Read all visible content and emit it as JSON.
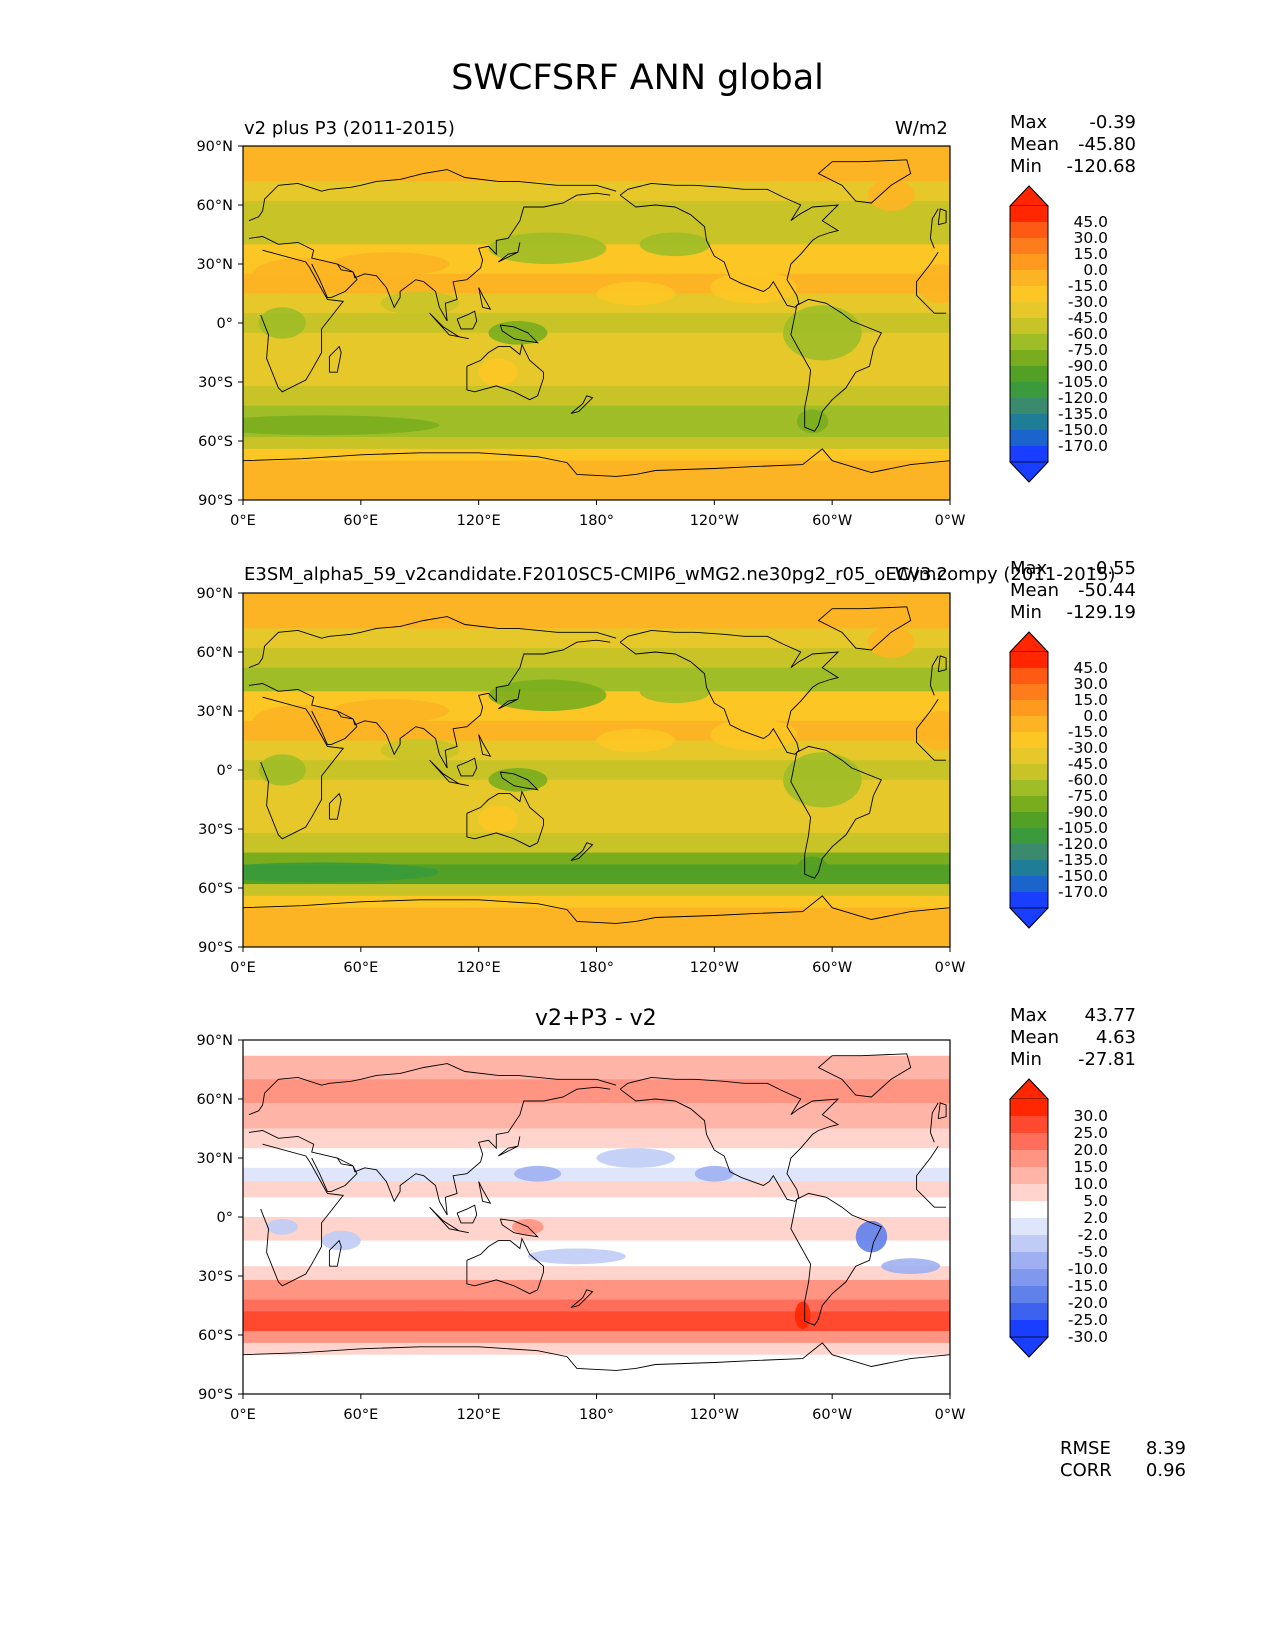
{
  "figure_title": "SWCFSRF ANN global",
  "axes": {
    "lat_labels": [
      "90°N",
      "60°N",
      "30°N",
      "0°",
      "30°S",
      "60°S",
      "90°S"
    ],
    "lon_labels": [
      "0°E",
      "60°E",
      "120°E",
      "180°",
      "120°W",
      "60°W",
      "0°W"
    ]
  },
  "colors": {
    "base_palette": [
      "#ff2600",
      "#ff5a14",
      "#ff7c1c",
      "#ff9a1e",
      "#fdb424",
      "#fcc624",
      "#e6c82a",
      "#c8c428",
      "#9fbd27",
      "#7aad1e",
      "#52a025",
      "#3a9a3c",
      "#3a8a6e",
      "#1f7d98",
      "#1a64cc",
      "#1a3eff"
    ],
    "diff_palette": [
      "#ff2600",
      "#ff4a30",
      "#ff6e5a",
      "#ff9482",
      "#ffb4a8",
      "#ffd4cc",
      "#ffffff",
      "#dfe6fb",
      "#c0ccf6",
      "#9fb0f2",
      "#8098ee",
      "#6080ea",
      "#3e62f0",
      "#1a3eff"
    ],
    "land_outline": "#000000"
  },
  "panels": [
    {
      "id": "test",
      "title_left": "v2 plus P3 (2011-2015)",
      "units": "W/m2",
      "stats": {
        "max_label": "Max",
        "max": "-0.39",
        "mean_label": "Mean",
        "mean": "-45.80",
        "min_label": "Min",
        "min": "-120.68"
      },
      "colorbar_levels": [
        "45.0",
        "30.0",
        "15.0",
        "0.0",
        "-15.0",
        "-30.0",
        "-45.0",
        "-60.0",
        "-75.0",
        "-90.0",
        "-105.0",
        "-120.0",
        "-135.0",
        "-150.0",
        "-170.0"
      ]
    },
    {
      "id": "ref",
      "title_left": "E3SM_alpha5_59_v2candidate.F2010SC5-CMIP6_wMG2.ne30pg2_r05_oECv3.compy (2011-2015)",
      "units": "W/m2",
      "stats": {
        "max_label": "Max",
        "max": "-0.55",
        "mean_label": "Mean",
        "mean": "-50.44",
        "min_label": "Min",
        "min": "-129.19"
      },
      "colorbar_levels": [
        "45.0",
        "30.0",
        "15.0",
        "0.0",
        "-15.0",
        "-30.0",
        "-45.0",
        "-60.0",
        "-75.0",
        "-90.0",
        "-105.0",
        "-120.0",
        "-135.0",
        "-150.0",
        "-170.0"
      ]
    },
    {
      "id": "diff",
      "title_center": "v2+P3 - v2",
      "stats": {
        "max_label": "Max",
        "max": "43.77",
        "mean_label": "Mean",
        "mean": "4.63",
        "min_label": "Min",
        "min": "-27.81"
      },
      "colorbar_levels": [
        "30.0",
        "25.0",
        "20.0",
        "15.0",
        "10.0",
        "5.0",
        "2.0",
        "-2.0",
        "-5.0",
        "-10.0",
        "-15.0",
        "-20.0",
        "-25.0",
        "-30.0"
      ],
      "rmse_label": "RMSE",
      "rmse": "8.39",
      "corr_label": "CORR",
      "corr": "0.96"
    }
  ]
}
